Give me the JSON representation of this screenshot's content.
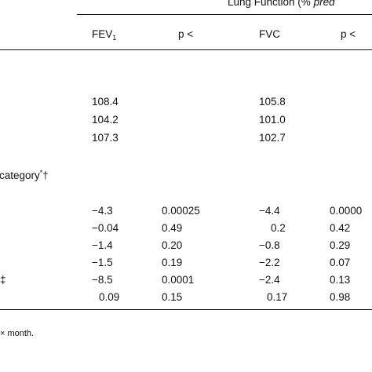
{
  "header": {
    "group_title_plain": "Lung Function (% ",
    "group_title_italic": "pred",
    "col_fev_main": "FEV",
    "col_fev_sub": "1",
    "col_p1": "p <",
    "col_fvc": "FVC",
    "col_p2": "p <"
  },
  "baseline": {
    "rows": [
      {
        "fev": "108.4",
        "fvc": "105.8"
      },
      {
        "fev": "104.2",
        "fvc": "101.0"
      },
      {
        "fev": "107.3",
        "fvc": "102.7"
      }
    ]
  },
  "section": {
    "label_text": "category",
    "label_marks_star": "*",
    "label_marks_dagger": "†"
  },
  "effects": {
    "rows": [
      {
        "stub": "",
        "fev": "−4.3",
        "p1": "0.00025",
        "fvc": "−4.4",
        "p2": "0.0000"
      },
      {
        "stub": "",
        "fev": "−0.04",
        "p1": "0.49",
        "fvc": "0.2",
        "p2": "0.42"
      },
      {
        "stub": "",
        "fev": "−1.4",
        "p1": "0.20",
        "fvc": "−0.8",
        "p2": "0.29"
      },
      {
        "stub": "",
        "fev": "−1.5",
        "p1": "0.19",
        "fvc": "−2.2",
        "p2": "0.07"
      },
      {
        "stub": "‡",
        "fev": "−8.5",
        "p1": "0.0001",
        "fvc": "−2.4",
        "p2": "0.13"
      },
      {
        "stub": "",
        "fev": "0.09",
        "p1": "0.15",
        "fvc": "0.17",
        "p2": "0.98"
      }
    ]
  },
  "footnote": {
    "text": "× month."
  }
}
